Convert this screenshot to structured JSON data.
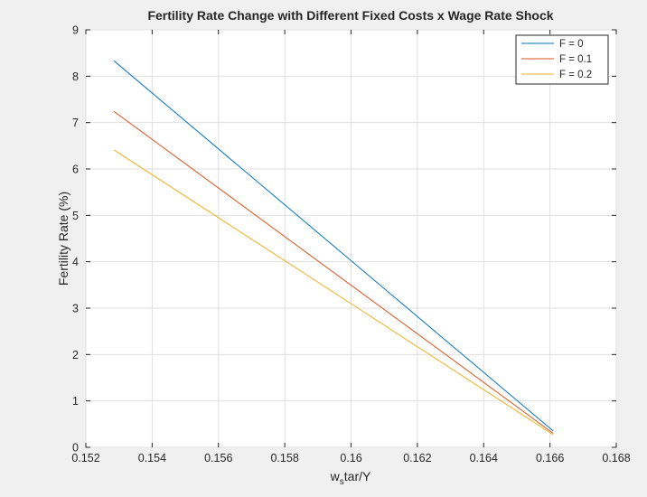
{
  "chart_data": {
    "type": "line",
    "title": "Fertility Rate Change with Different Fixed Costs x Wage Rate Shock",
    "xlabel_main": "w",
    "xlabel_sub": "s",
    "xlabel_rest": "tar/Y",
    "ylabel": "Fertility Rate (%)",
    "xlim": [
      0.152,
      0.168
    ],
    "ylim": [
      0,
      9
    ],
    "xticks": [
      "0.152",
      "0.154",
      "0.156",
      "0.158",
      "0.16",
      "0.162",
      "0.164",
      "0.166",
      "0.168"
    ],
    "yticks": [
      "0",
      "1",
      "2",
      "3",
      "4",
      "5",
      "6",
      "7",
      "8",
      "9"
    ],
    "grid": true,
    "legend_position": "top-right",
    "series": [
      {
        "name": "F = 0",
        "color": "#0072BD",
        "x": [
          0.15285,
          0.1661
        ],
        "y": [
          8.33,
          0.35
        ]
      },
      {
        "name": "F = 0.1",
        "color": "#D95319",
        "x": [
          0.15285,
          0.1661
        ],
        "y": [
          7.24,
          0.3
        ]
      },
      {
        "name": "F = 0.2",
        "color": "#EDB120",
        "x": [
          0.15285,
          0.1661
        ],
        "y": [
          6.41,
          0.27
        ]
      }
    ]
  }
}
